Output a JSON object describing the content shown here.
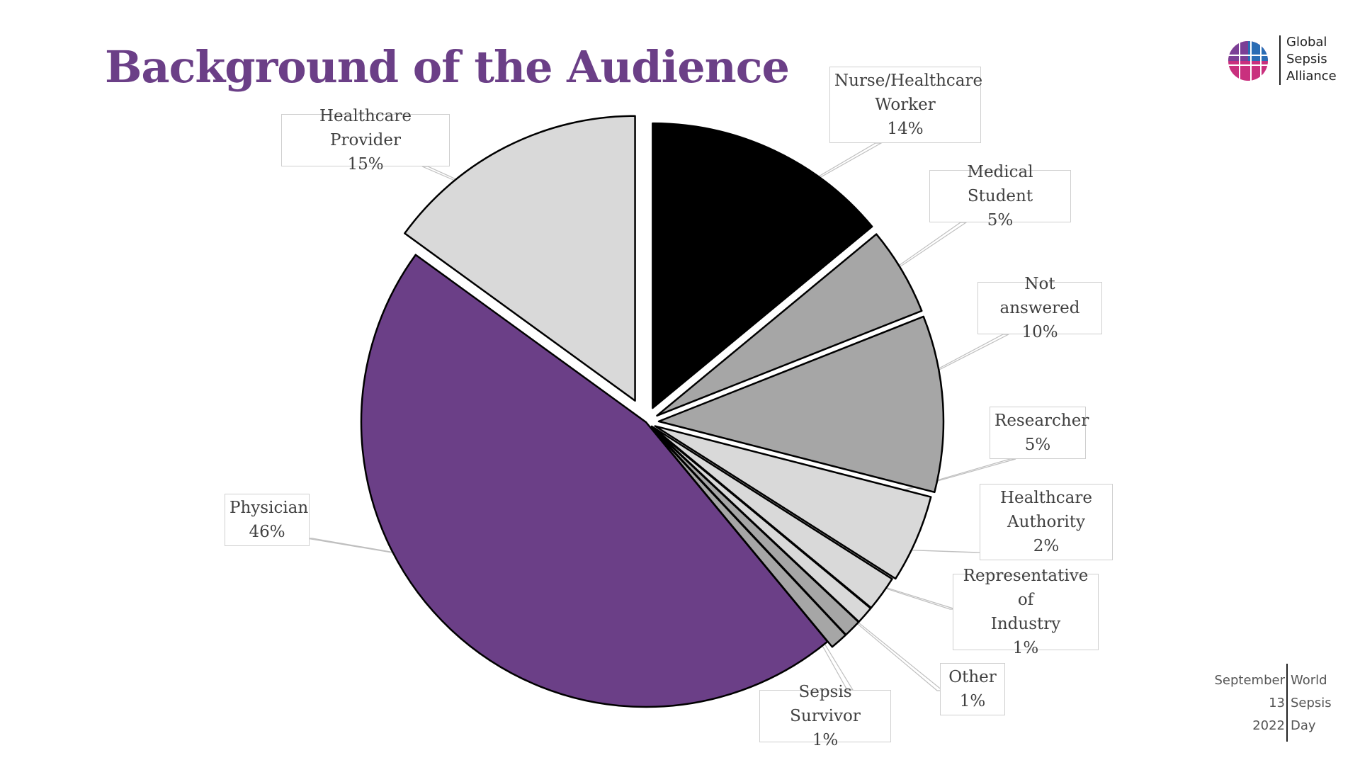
{
  "slide": {
    "title": "Background of the Audience"
  },
  "logo": {
    "line1": "Global",
    "line2": "Sepsis",
    "line3": "Alliance"
  },
  "event": {
    "date_line1": "September",
    "date_line2": "13",
    "date_line3": "2022",
    "name_line1": "World",
    "name_line2": "Sepsis",
    "name_line3": "Day"
  },
  "colors": {
    "purple": "#6b3f87",
    "black": "#000000",
    "light_gray": "#d9d9d9",
    "mid_gray": "#a6a6a6"
  },
  "chart_data": {
    "type": "pie",
    "title": "",
    "legend": "none",
    "start_angle_deg": 0,
    "direction": "clockwise",
    "slices": [
      {
        "label_lines": [
          "Nurse/Healthcare",
          "Worker"
        ],
        "value": 14,
        "percent": "14%",
        "color": "#000000"
      },
      {
        "label_lines": [
          "Medical Student"
        ],
        "value": 5,
        "percent": "5%",
        "color": "#a6a6a6"
      },
      {
        "label_lines": [
          "Not answered"
        ],
        "value": 10,
        "percent": "10%",
        "color": "#a6a6a6"
      },
      {
        "label_lines": [
          "Researcher"
        ],
        "value": 5,
        "percent": "5%",
        "color": "#d9d9d9"
      },
      {
        "label_lines": [
          "Healthcare",
          "Authority"
        ],
        "value": 2,
        "percent": "2%",
        "color": "#d9d9d9"
      },
      {
        "label_lines": [
          "Representative of",
          "Industry"
        ],
        "value": 1,
        "percent": "1%",
        "color": "#d9d9d9"
      },
      {
        "label_lines": [
          "Other"
        ],
        "value": 1,
        "percent": "1%",
        "color": "#a6a6a6"
      },
      {
        "label_lines": [
          "Sepsis Survivor"
        ],
        "value": 1,
        "percent": "1%",
        "color": "#a6a6a6"
      },
      {
        "label_lines": [
          "Physician"
        ],
        "value": 46,
        "percent": "46%",
        "color": "#6b3f87"
      },
      {
        "label_lines": [
          "Healthcare Provider"
        ],
        "value": 15,
        "percent": "15%",
        "color": "#d9d9d9"
      }
    ]
  }
}
